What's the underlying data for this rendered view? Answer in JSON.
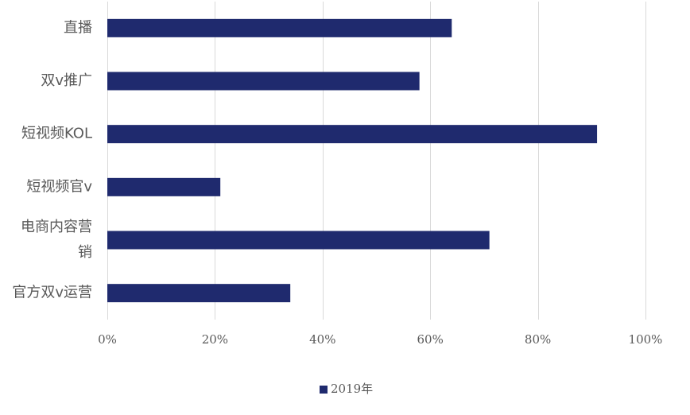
{
  "chart_data": {
    "type": "bar",
    "orientation": "horizontal",
    "categories": [
      "直播",
      "双v推广",
      "短视频KOL",
      "短视频官v",
      "电商内容营销",
      "官方双v运营"
    ],
    "category_display_lines": [
      [
        "直播"
      ],
      [
        "双v推广"
      ],
      [
        "短视频KOL"
      ],
      [
        "短视频官v"
      ],
      [
        "电商内容营",
        "销"
      ],
      [
        "官方双v运营"
      ]
    ],
    "series": [
      {
        "name": "2019年",
        "color": "#1f2a6e",
        "values": [
          64,
          58,
          91,
          21,
          71,
          34
        ]
      }
    ],
    "xlim": [
      0,
      100
    ],
    "x_ticks": [
      0,
      20,
      40,
      60,
      80,
      100
    ],
    "x_tick_labels": [
      "0%",
      "20%",
      "40%",
      "60%",
      "80%",
      "100%"
    ],
    "grid": "vertical",
    "legend_position": "bottom-center",
    "title": "",
    "xlabel": "",
    "ylabel": ""
  }
}
